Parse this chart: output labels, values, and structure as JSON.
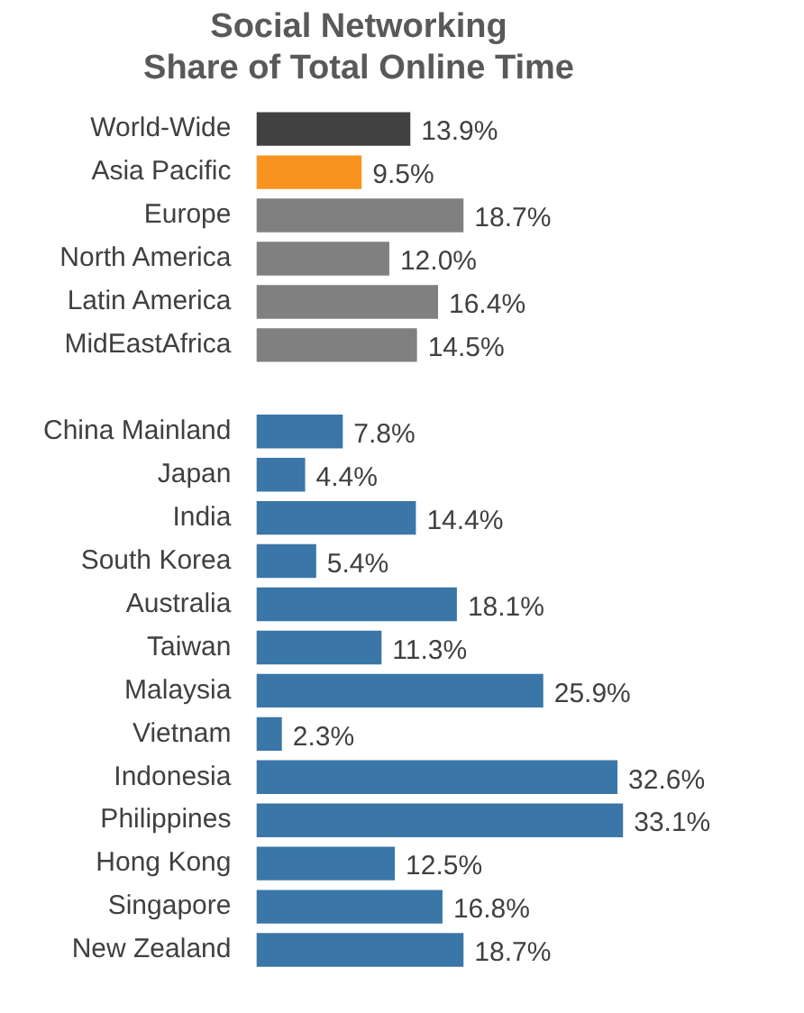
{
  "chart_data": {
    "type": "bar",
    "orientation": "horizontal",
    "title": "Social Networking\nShare of Total Online Time",
    "categories": [
      "World-Wide",
      "Asia Pacific",
      "Europe",
      "North America",
      "Latin America",
      "MidEastAfrica",
      null,
      "China Mainland",
      "Japan",
      "India",
      "South Korea",
      "Australia",
      "Taiwan",
      "Malaysia",
      "Vietnam",
      "Indonesia",
      "Philippines",
      "Hong Kong",
      "Singapore",
      "New Zealand"
    ],
    "values": [
      13.9,
      9.5,
      18.7,
      12.0,
      16.4,
      14.5,
      null,
      7.8,
      4.4,
      14.4,
      5.4,
      18.1,
      11.3,
      25.9,
      2.3,
      32.6,
      33.1,
      12.5,
      16.8,
      18.7
    ],
    "value_labels": [
      "13.9%",
      "9.5%",
      "18.7%",
      "12.0%",
      "16.4%",
      "14.5%",
      null,
      "7.8%",
      "4.4%",
      "14.4%",
      "5.4%",
      "18.1%",
      "11.3%",
      "25.9%",
      "2.3%",
      "32.6%",
      "33.1%",
      "12.5%",
      "16.8%",
      "18.7%"
    ],
    "colors": [
      "#404040",
      "#f7931e",
      "#808080",
      "#808080",
      "#808080",
      "#808080",
      "#808080",
      "#3a76a8",
      "#3a76a8",
      "#3a76a8",
      "#3a76a8",
      "#3a76a8",
      "#3a76a8",
      "#3a76a8",
      "#3a76a8",
      "#3a76a8",
      "#3a76a8",
      "#3a76a8",
      "#3a76a8",
      "#3a76a8"
    ],
    "legend": false
  }
}
